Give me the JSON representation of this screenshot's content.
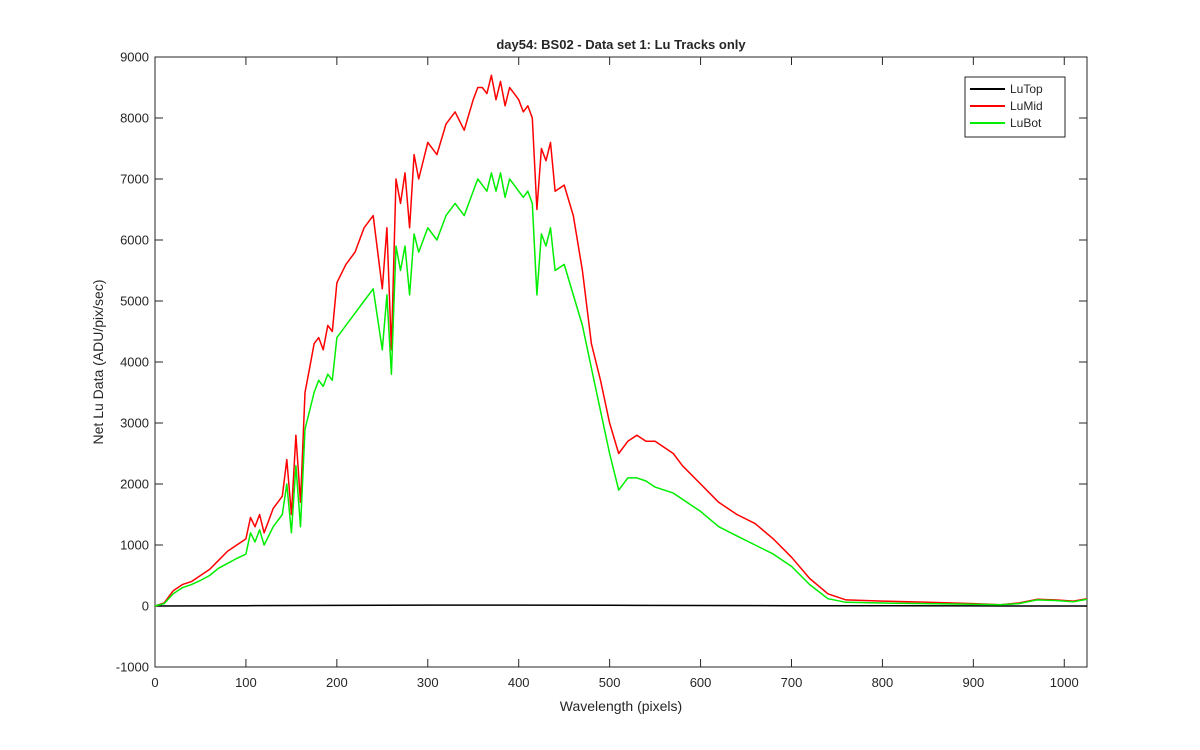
{
  "chart_data": {
    "type": "line",
    "title": "day54: BS02 - Data set 1: Lu Tracks only",
    "xlabel": "Wavelength (pixels)",
    "ylabel": "Net Lu Data (ADU/pix/sec)",
    "xlim": [
      0,
      1025
    ],
    "ylim": [
      -1000,
      9000
    ],
    "xticks": [
      0,
      100,
      200,
      300,
      400,
      500,
      600,
      700,
      800,
      900,
      1000
    ],
    "yticks": [
      -1000,
      0,
      1000,
      2000,
      3000,
      4000,
      5000,
      6000,
      7000,
      8000,
      9000
    ],
    "grid": false,
    "legend_position": "top-right",
    "series": [
      {
        "name": "LuTop",
        "color": "#000000",
        "x": [
          0,
          100,
          200,
          300,
          400,
          500,
          600,
          700,
          800,
          900,
          1000,
          1025
        ],
        "y": [
          0,
          5,
          10,
          15,
          15,
          12,
          8,
          5,
          3,
          2,
          0,
          0
        ]
      },
      {
        "name": "LuMid",
        "color": "#ff0000",
        "x": [
          0,
          10,
          20,
          30,
          40,
          50,
          60,
          70,
          80,
          90,
          100,
          105,
          110,
          115,
          120,
          125,
          130,
          135,
          140,
          145,
          150,
          155,
          160,
          165,
          170,
          175,
          180,
          185,
          190,
          195,
          200,
          210,
          220,
          230,
          240,
          250,
          255,
          260,
          265,
          270,
          275,
          280,
          285,
          290,
          300,
          310,
          320,
          330,
          340,
          350,
          355,
          360,
          365,
          370,
          375,
          380,
          385,
          390,
          395,
          400,
          405,
          410,
          415,
          420,
          425,
          430,
          435,
          440,
          450,
          460,
          470,
          480,
          490,
          500,
          510,
          520,
          530,
          540,
          550,
          560,
          570,
          580,
          600,
          620,
          640,
          660,
          680,
          700,
          720,
          740,
          760,
          800,
          850,
          900,
          930,
          950,
          970,
          990,
          1010,
          1025
        ],
        "y": [
          0,
          50,
          250,
          350,
          400,
          500,
          600,
          750,
          900,
          1000,
          1100,
          1450,
          1300,
          1500,
          1200,
          1400,
          1600,
          1700,
          1800,
          2400,
          1500,
          2800,
          1700,
          3500,
          3900,
          4300,
          4400,
          4200,
          4600,
          4500,
          5300,
          5600,
          5800,
          6200,
          6400,
          5200,
          6200,
          4200,
          7000,
          6600,
          7100,
          6200,
          7400,
          7000,
          7600,
          7400,
          7900,
          8100,
          7800,
          8300,
          8500,
          8500,
          8400,
          8700,
          8300,
          8600,
          8200,
          8500,
          8400,
          8300,
          8100,
          8200,
          8000,
          6500,
          7500,
          7300,
          7600,
          6800,
          6900,
          6400,
          5500,
          4300,
          3700,
          3000,
          2500,
          2700,
          2800,
          2700,
          2700,
          2600,
          2500,
          2300,
          2000,
          1700,
          1500,
          1350,
          1100,
          800,
          450,
          200,
          100,
          80,
          60,
          40,
          20,
          50,
          110,
          100,
          80,
          120
        ]
      },
      {
        "name": "LuBot",
        "color": "#00ee00",
        "x": [
          0,
          10,
          20,
          30,
          40,
          50,
          60,
          70,
          80,
          90,
          100,
          105,
          110,
          115,
          120,
          125,
          130,
          135,
          140,
          145,
          150,
          155,
          160,
          165,
          170,
          175,
          180,
          185,
          190,
          195,
          200,
          210,
          220,
          230,
          240,
          250,
          255,
          260,
          265,
          270,
          275,
          280,
          285,
          290,
          300,
          310,
          320,
          330,
          340,
          350,
          355,
          360,
          365,
          370,
          375,
          380,
          385,
          390,
          395,
          400,
          405,
          410,
          415,
          420,
          425,
          430,
          435,
          440,
          450,
          460,
          470,
          480,
          490,
          500,
          510,
          520,
          530,
          540,
          550,
          560,
          570,
          580,
          600,
          620,
          640,
          660,
          680,
          700,
          720,
          740,
          760,
          800,
          850,
          900,
          930,
          950,
          970,
          990,
          1010,
          1025
        ],
        "y": [
          0,
          40,
          200,
          300,
          350,
          420,
          500,
          620,
          700,
          780,
          850,
          1200,
          1050,
          1250,
          1000,
          1150,
          1300,
          1400,
          1500,
          2000,
          1200,
          2300,
          1300,
          2900,
          3200,
          3500,
          3700,
          3600,
          3800,
          3700,
          4400,
          4600,
          4800,
          5000,
          5200,
          4200,
          5100,
          3800,
          5900,
          5500,
          5900,
          5100,
          6100,
          5800,
          6200,
          6000,
          6400,
          6600,
          6400,
          6800,
          7000,
          6900,
          6800,
          7100,
          6800,
          7100,
          6700,
          7000,
          6900,
          6800,
          6700,
          6800,
          6600,
          5100,
          6100,
          5900,
          6200,
          5500,
          5600,
          5100,
          4600,
          3900,
          3200,
          2500,
          1900,
          2100,
          2100,
          2050,
          1950,
          1900,
          1850,
          1750,
          1550,
          1300,
          1150,
          1000,
          850,
          650,
          350,
          120,
          60,
          50,
          40,
          30,
          20,
          40,
          100,
          90,
          70,
          110
        ]
      }
    ]
  }
}
